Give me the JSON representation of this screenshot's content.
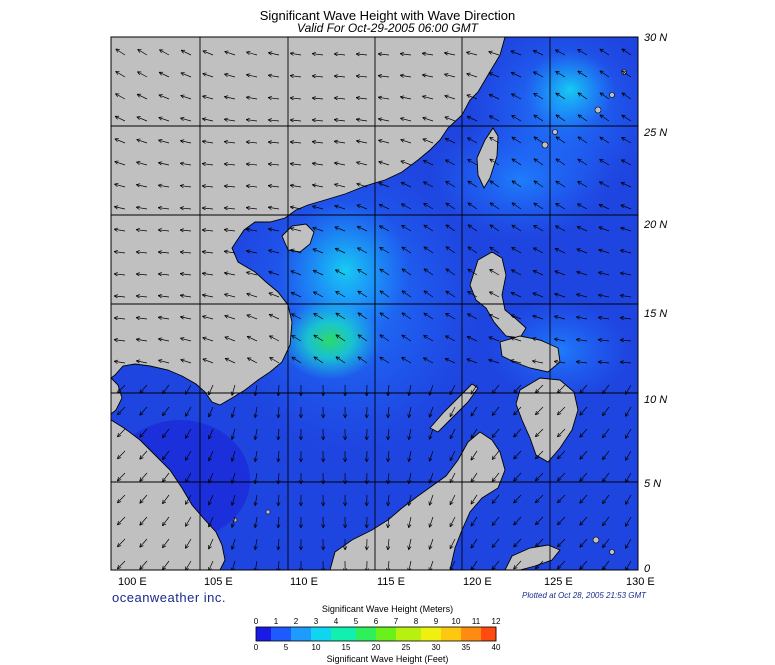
{
  "header": {
    "title": "Significant Wave Height with Wave Direction",
    "subtitle": "Valid For Oct-29-2005 06:00 GMT"
  },
  "map": {
    "lon_labels": [
      "100 E",
      "105 E",
      "110 E",
      "115 E",
      "120 E",
      "125 E",
      "130 E"
    ],
    "lat_labels": [
      "30 N",
      "25 N",
      "20 N",
      "15 N",
      "10 N",
      "5 N",
      "0"
    ],
    "land_color": "#c0c0c0",
    "coast_color": "#000000",
    "sea_base_color": "#1f3fd9"
  },
  "footer": {
    "brand": "oceanweather inc.",
    "plotted": "Plotted at Oct 28, 2005 21:53 GMT"
  },
  "colorbar": {
    "title_meters": "Significant Wave Height (Meters)",
    "title_feet": "Significant Wave Height (Feet)",
    "meters_ticks": [
      "0",
      "1",
      "2",
      "3",
      "4",
      "5",
      "6",
      "7",
      "8",
      "9",
      "10",
      "11",
      "12"
    ],
    "feet_ticks": [
      "0",
      "5",
      "10",
      "15",
      "20",
      "25",
      "30",
      "35",
      "40"
    ],
    "colors": [
      "#1a1ae6",
      "#1f5aff",
      "#1e9bff",
      "#10d5f0",
      "#12f0b0",
      "#2ef05a",
      "#6af01a",
      "#b8f010",
      "#f0f010",
      "#ffc810",
      "#ff8c10",
      "#ff4a10"
    ]
  }
}
